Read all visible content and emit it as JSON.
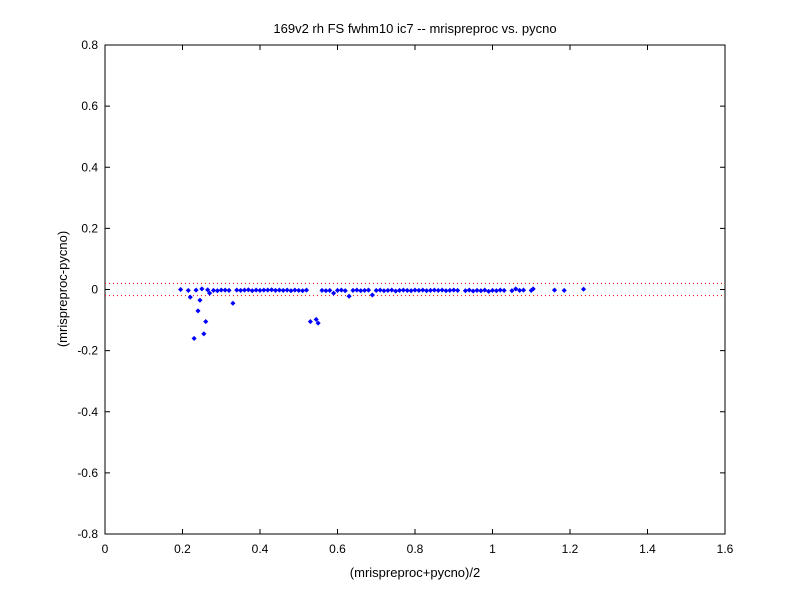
{
  "chart_data": {
    "type": "scatter",
    "title": "169v2 rh FS fwhm10 ic7 -- mrispreproc vs. pycno",
    "xlabel": "(mrispreproc+pycno)/2",
    "ylabel": "(mrispreproc-pycno)",
    "xlim": [
      0,
      1.6
    ],
    "ylim": [
      -0.8,
      0.8
    ],
    "xticks": [
      "0",
      "0.2",
      "0.4",
      "0.6",
      "0.8",
      "1",
      "1.2",
      "1.4",
      "1.6"
    ],
    "yticks": [
      "-0.8",
      "-0.6",
      "-0.4",
      "-0.2",
      "0",
      "0.2",
      "0.4",
      "0.6",
      "0.8"
    ],
    "grid": false,
    "marker_color": "#0000ff",
    "threshold_color": "#ff0000",
    "thresholds": [
      0.02,
      -0.02
    ],
    "series": [
      {
        "points": [
          [
            0.195,
            0.0
          ],
          [
            0.215,
            -0.003
          ],
          [
            0.22,
            -0.025
          ],
          [
            0.23,
            -0.16
          ],
          [
            0.235,
            -0.002
          ],
          [
            0.24,
            -0.07
          ],
          [
            0.245,
            -0.035
          ],
          [
            0.25,
            0.002
          ],
          [
            0.255,
            -0.145
          ],
          [
            0.26,
            -0.105
          ],
          [
            0.265,
            -0.001
          ],
          [
            0.27,
            -0.012
          ],
          [
            0.28,
            -0.003
          ],
          [
            0.29,
            -0.004
          ],
          [
            0.3,
            -0.002
          ],
          [
            0.31,
            -0.002
          ],
          [
            0.32,
            -0.003
          ],
          [
            0.33,
            -0.045
          ],
          [
            0.34,
            -0.002
          ],
          [
            0.35,
            -0.003
          ],
          [
            0.36,
            -0.002
          ],
          [
            0.37,
            -0.001
          ],
          [
            0.38,
            -0.004
          ],
          [
            0.39,
            -0.002
          ],
          [
            0.4,
            -0.003
          ],
          [
            0.41,
            -0.002
          ],
          [
            0.42,
            -0.002
          ],
          [
            0.43,
            -0.001
          ],
          [
            0.44,
            -0.003
          ],
          [
            0.45,
            -0.002
          ],
          [
            0.46,
            -0.003
          ],
          [
            0.47,
            -0.002
          ],
          [
            0.48,
            -0.004
          ],
          [
            0.49,
            -0.002
          ],
          [
            0.5,
            -0.003
          ],
          [
            0.51,
            -0.004
          ],
          [
            0.52,
            -0.002
          ],
          [
            0.53,
            -0.105
          ],
          [
            0.545,
            -0.098
          ],
          [
            0.55,
            -0.11
          ],
          [
            0.56,
            -0.003
          ],
          [
            0.57,
            -0.004
          ],
          [
            0.58,
            -0.003
          ],
          [
            0.59,
            -0.012
          ],
          [
            0.6,
            -0.003
          ],
          [
            0.61,
            -0.002
          ],
          [
            0.62,
            -0.004
          ],
          [
            0.63,
            -0.022
          ],
          [
            0.64,
            -0.003
          ],
          [
            0.65,
            -0.002
          ],
          [
            0.66,
            -0.004
          ],
          [
            0.67,
            -0.003
          ],
          [
            0.68,
            -0.002
          ],
          [
            0.69,
            -0.018
          ],
          [
            0.7,
            -0.003
          ],
          [
            0.71,
            -0.002
          ],
          [
            0.72,
            -0.004
          ],
          [
            0.73,
            -0.003
          ],
          [
            0.74,
            -0.002
          ],
          [
            0.75,
            -0.005
          ],
          [
            0.76,
            -0.003
          ],
          [
            0.77,
            -0.002
          ],
          [
            0.78,
            -0.003
          ],
          [
            0.79,
            -0.004
          ],
          [
            0.8,
            -0.002
          ],
          [
            0.81,
            -0.003
          ],
          [
            0.82,
            -0.002
          ],
          [
            0.83,
            -0.004
          ],
          [
            0.84,
            -0.003
          ],
          [
            0.85,
            -0.002
          ],
          [
            0.86,
            -0.003
          ],
          [
            0.87,
            -0.002
          ],
          [
            0.88,
            -0.004
          ],
          [
            0.89,
            -0.003
          ],
          [
            0.9,
            -0.002
          ],
          [
            0.91,
            -0.003
          ],
          [
            0.93,
            -0.004
          ],
          [
            0.94,
            -0.002
          ],
          [
            0.95,
            -0.005
          ],
          [
            0.96,
            -0.003
          ],
          [
            0.97,
            -0.004
          ],
          [
            0.98,
            -0.002
          ],
          [
            0.99,
            -0.006
          ],
          [
            1.0,
            -0.003
          ],
          [
            1.01,
            -0.004
          ],
          [
            1.02,
            -0.002
          ],
          [
            1.03,
            -0.003
          ],
          [
            1.05,
            -0.004
          ],
          [
            1.06,
            0.002
          ],
          [
            1.07,
            -0.003
          ],
          [
            1.08,
            -0.002
          ],
          [
            1.1,
            -0.003
          ],
          [
            1.105,
            0.002
          ],
          [
            1.16,
            -0.002
          ],
          [
            1.185,
            -0.003
          ],
          [
            1.235,
            0.001
          ]
        ]
      }
    ]
  }
}
